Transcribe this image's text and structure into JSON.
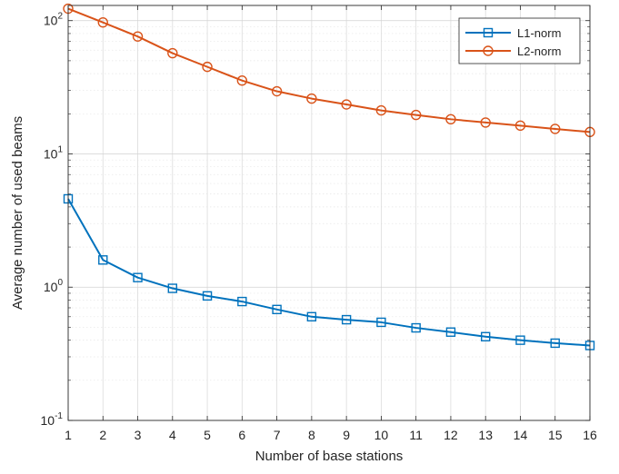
{
  "chart_data": {
    "type": "line",
    "title": "",
    "xlabel": "Number of base stations",
    "ylabel": "Average number of used beams",
    "xlim": [
      1,
      16
    ],
    "ylim": [
      0.1,
      130
    ],
    "yscale": "log",
    "x_ticks": [
      1,
      2,
      3,
      4,
      5,
      6,
      7,
      8,
      9,
      10,
      11,
      12,
      13,
      14,
      15,
      16
    ],
    "y_ticks": [
      {
        "base": "10",
        "exp": "-1",
        "value": 0.1
      },
      {
        "base": "10",
        "exp": "0",
        "value": 1
      },
      {
        "base": "10",
        "exp": "1",
        "value": 10
      },
      {
        "base": "10",
        "exp": "2",
        "value": 100
      }
    ],
    "grid": true,
    "minor_grid": true,
    "legend_position": "top-right",
    "x": [
      1,
      2,
      3,
      4,
      5,
      6,
      7,
      8,
      9,
      10,
      11,
      12,
      13,
      14,
      15,
      16
    ],
    "series": [
      {
        "name": "L1-norm",
        "color": "#0072BD",
        "marker": "square",
        "values": [
          4.6,
          1.6,
          1.18,
          0.98,
          0.86,
          0.78,
          0.68,
          0.6,
          0.57,
          0.545,
          0.495,
          0.46,
          0.425,
          0.4,
          0.38,
          0.365
        ]
      },
      {
        "name": "L2-norm",
        "color": "#D95319",
        "marker": "circle",
        "values": [
          123,
          97,
          76,
          57,
          45,
          35.5,
          29.5,
          26,
          23.5,
          21.2,
          19.6,
          18.2,
          17.2,
          16.3,
          15.4,
          14.6
        ]
      }
    ]
  }
}
